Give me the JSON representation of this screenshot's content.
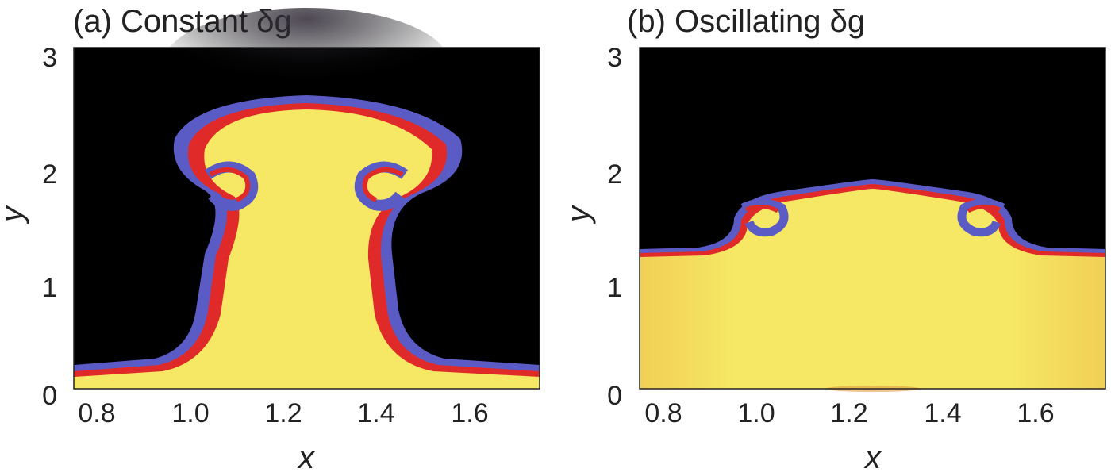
{
  "chart_data": [
    {
      "type": "heatmap",
      "title": "(a) Constant δg",
      "xlabel": "x",
      "ylabel": "y",
      "xlim": [
        0.75,
        1.75
      ],
      "ylim": [
        0,
        3
      ],
      "xticks": [
        "0.8",
        "1.0",
        "1.2",
        "1.4",
        "1.6"
      ],
      "yticks": [
        "0",
        "1",
        "2",
        "3"
      ],
      "colormap": [
        "#000000",
        "#5c5cc8",
        "#e02a2a",
        "#f5e65a"
      ],
      "interface_profile": {
        "x": [
          0.75,
          0.85,
          0.95,
          1.02,
          1.08,
          1.12,
          1.18,
          1.25,
          1.32,
          1.38,
          1.42,
          1.48,
          1.55,
          1.65,
          1.75
        ],
        "y": [
          0.18,
          0.22,
          0.32,
          0.7,
          1.3,
          2.0,
          2.35,
          2.55,
          2.35,
          2.0,
          1.3,
          0.7,
          0.32,
          0.22,
          0.18
        ]
      }
    },
    {
      "type": "heatmap",
      "title": "(b) Oscillating δg",
      "xlabel": "x",
      "ylabel": "y",
      "xlim": [
        0.75,
        1.75
      ],
      "ylim": [
        0,
        3
      ],
      "xticks": [
        "0.8",
        "1.0",
        "1.2",
        "1.4",
        "1.6"
      ],
      "yticks": [
        "0",
        "1",
        "2",
        "3"
      ],
      "colormap": [
        "#000000",
        "#5c5cc8",
        "#e02a2a",
        "#f5e65a"
      ],
      "interface_profile": {
        "x": [
          0.75,
          0.85,
          0.92,
          0.98,
          1.05,
          1.15,
          1.25,
          1.35,
          1.45,
          1.52,
          1.58,
          1.65,
          1.75
        ],
        "y": [
          1.2,
          1.22,
          1.3,
          1.55,
          1.7,
          1.78,
          1.8,
          1.78,
          1.7,
          1.55,
          1.3,
          1.22,
          1.2
        ]
      }
    }
  ]
}
